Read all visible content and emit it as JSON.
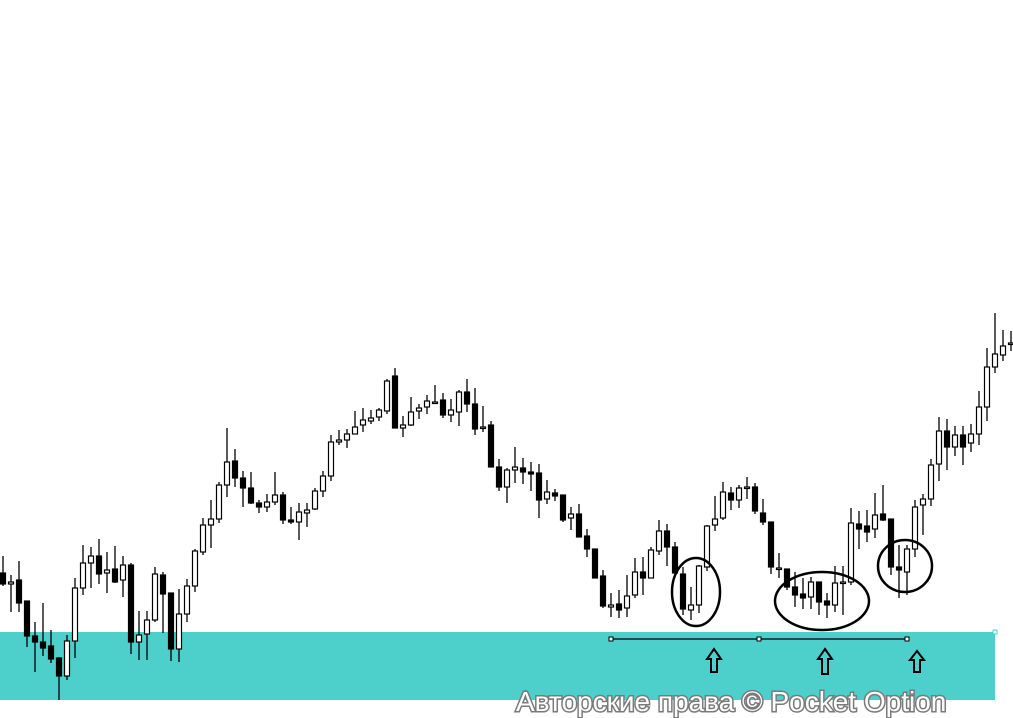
{
  "watermark": "Авторские права © Pocket Option",
  "colors": {
    "zone": "#4dd0cc",
    "bull_body": "#ffffff",
    "bear_body": "#000000",
    "outline": "#000000"
  },
  "chart_data": {
    "type": "candlestick",
    "title": "",
    "xlabel": "",
    "ylabel": "",
    "axes_visible": false,
    "grid": false,
    "value_units": "relative price (no axis printed)",
    "ohlc_fields": [
      "open",
      "high",
      "low",
      "close"
    ],
    "candles": [
      [
        145,
        162,
        132,
        134
      ],
      [
        134,
        143,
        106,
        136
      ],
      [
        138,
        157,
        106,
        115
      ],
      [
        117,
        117,
        71,
        82
      ],
      [
        82,
        96,
        46,
        76
      ],
      [
        76,
        115,
        62,
        70
      ],
      [
        72,
        88,
        55,
        59
      ],
      [
        60,
        61,
        18,
        42
      ],
      [
        42,
        83,
        38,
        77
      ],
      [
        77,
        140,
        60,
        130
      ],
      [
        130,
        173,
        123,
        155
      ],
      [
        155,
        171,
        130,
        162
      ],
      [
        162,
        179,
        134,
        144
      ],
      [
        145,
        166,
        125,
        148
      ],
      [
        149,
        172,
        135,
        136
      ],
      [
        138,
        162,
        121,
        153
      ],
      [
        153,
        155,
        64,
        76
      ],
      [
        76,
        107,
        58,
        83
      ],
      [
        84,
        107,
        58,
        98
      ],
      [
        98,
        151,
        96,
        144
      ],
      [
        143,
        146,
        85,
        124
      ],
      [
        125,
        125,
        57,
        69
      ],
      [
        69,
        129,
        56,
        104
      ],
      [
        104,
        139,
        96,
        132
      ],
      [
        132,
        169,
        126,
        167
      ],
      [
        166,
        200,
        163,
        193
      ],
      [
        193,
        218,
        170,
        199
      ],
      [
        199,
        236,
        195,
        233
      ],
      [
        233,
        290,
        221,
        256
      ],
      [
        257,
        269,
        231,
        240
      ],
      [
        240,
        247,
        211,
        230
      ],
      [
        230,
        246,
        214,
        215
      ],
      [
        215,
        218,
        205,
        211
      ],
      [
        211,
        224,
        206,
        216
      ],
      [
        216,
        246,
        213,
        223
      ],
      [
        223,
        226,
        194,
        198
      ],
      [
        198,
        211,
        194,
        196
      ],
      [
        196,
        215,
        178,
        206
      ],
      [
        205,
        215,
        191,
        208
      ],
      [
        209,
        230,
        208,
        227
      ],
      [
        227,
        247,
        221,
        242
      ],
      [
        242,
        283,
        237,
        276
      ],
      [
        276,
        288,
        273,
        278
      ],
      [
        278,
        289,
        270,
        284
      ],
      [
        284,
        307,
        284,
        291
      ],
      [
        293,
        310,
        286,
        298
      ],
      [
        297,
        308,
        294,
        300
      ],
      [
        301,
        310,
        297,
        308
      ],
      [
        307,
        339,
        304,
        337
      ],
      [
        342,
        350,
        290,
        290
      ],
      [
        290,
        302,
        281,
        293
      ],
      [
        293,
        321,
        292,
        306
      ],
      [
        307,
        314,
        299,
        310
      ],
      [
        311,
        323,
        304,
        317
      ],
      [
        316,
        333,
        315,
        316
      ],
      [
        318,
        325,
        300,
        303
      ],
      [
        303,
        319,
        296,
        308
      ],
      [
        306,
        328,
        292,
        326
      ],
      [
        326,
        339,
        306,
        314
      ],
      [
        314,
        330,
        283,
        289
      ],
      [
        291,
        312,
        286,
        291
      ],
      [
        293,
        297,
        251,
        251
      ],
      [
        251,
        259,
        227,
        231
      ],
      [
        231,
        250,
        215,
        248
      ],
      [
        248,
        271,
        235,
        251
      ],
      [
        250,
        260,
        234,
        246
      ],
      [
        246,
        256,
        227,
        244
      ],
      [
        245,
        254,
        200,
        218
      ],
      [
        219,
        238,
        214,
        226
      ],
      [
        225,
        229,
        217,
        222
      ],
      [
        223,
        223,
        196,
        198
      ],
      [
        200,
        211,
        188,
        204
      ],
      [
        204,
        214,
        181,
        181
      ],
      [
        182,
        189,
        161,
        169
      ],
      [
        169,
        169,
        140,
        140
      ],
      [
        142,
        148,
        110,
        112
      ],
      [
        111,
        125,
        101,
        113
      ],
      [
        114,
        128,
        100,
        108
      ],
      [
        110,
        143,
        101,
        122
      ],
      [
        123,
        160,
        120,
        146
      ],
      [
        146,
        161,
        123,
        140
      ],
      [
        140,
        171,
        140,
        168
      ],
      [
        167,
        198,
        163,
        187
      ],
      [
        187,
        194,
        152,
        171
      ],
      [
        171,
        176,
        143,
        145
      ],
      [
        144,
        151,
        103,
        109
      ],
      [
        108,
        131,
        98,
        113
      ],
      [
        113,
        153,
        105,
        152
      ],
      [
        151,
        193,
        147,
        192
      ],
      [
        193,
        222,
        187,
        199
      ],
      [
        200,
        236,
        198,
        226
      ],
      [
        225,
        231,
        208,
        218
      ],
      [
        218,
        233,
        210,
        230
      ],
      [
        230,
        241,
        219,
        231
      ],
      [
        231,
        235,
        204,
        207
      ],
      [
        205,
        219,
        193,
        196
      ],
      [
        196,
        196,
        144,
        151
      ],
      [
        150,
        165,
        140,
        150
      ],
      [
        149,
        149,
        128,
        131
      ],
      [
        131,
        146,
        111,
        123
      ],
      [
        124,
        140,
        109,
        120
      ],
      [
        121,
        141,
        109,
        136
      ],
      [
        136,
        136,
        103,
        116
      ],
      [
        117,
        125,
        100,
        113
      ],
      [
        113,
        152,
        106,
        135
      ],
      [
        136,
        152,
        103,
        136
      ],
      [
        136,
        210,
        133,
        195
      ],
      [
        194,
        207,
        169,
        189
      ],
      [
        192,
        208,
        176,
        186
      ],
      [
        189,
        225,
        180,
        203
      ],
      [
        204,
        233,
        197,
        198
      ],
      [
        199,
        199,
        143,
        151
      ],
      [
        151,
        173,
        120,
        148
      ],
      [
        146,
        173,
        123,
        169
      ],
      [
        169,
        218,
        161,
        211
      ],
      [
        213,
        224,
        183,
        219
      ],
      [
        219,
        259,
        212,
        253
      ],
      [
        254,
        301,
        237,
        287
      ],
      [
        287,
        299,
        248,
        271
      ],
      [
        271,
        292,
        262,
        283
      ],
      [
        283,
        292,
        253,
        271
      ],
      [
        275,
        294,
        266,
        284
      ],
      [
        284,
        327,
        273,
        311
      ],
      [
        311,
        370,
        297,
        351
      ],
      [
        351,
        405,
        345,
        364
      ],
      [
        363,
        388,
        357,
        372
      ],
      [
        374,
        387,
        367,
        375
      ]
    ],
    "support_level": {
      "price": 99,
      "from_candle": 76,
      "to_candle": 113
    },
    "highlighted_candle_groups": [
      {
        "from_candle": 84,
        "to_candle": 87
      },
      {
        "from_candle": 98,
        "to_candle": 105
      },
      {
        "from_candle": 111,
        "to_candle": 113
      }
    ],
    "zone": {
      "price_top": 86,
      "price_bottom": 18
    }
  }
}
